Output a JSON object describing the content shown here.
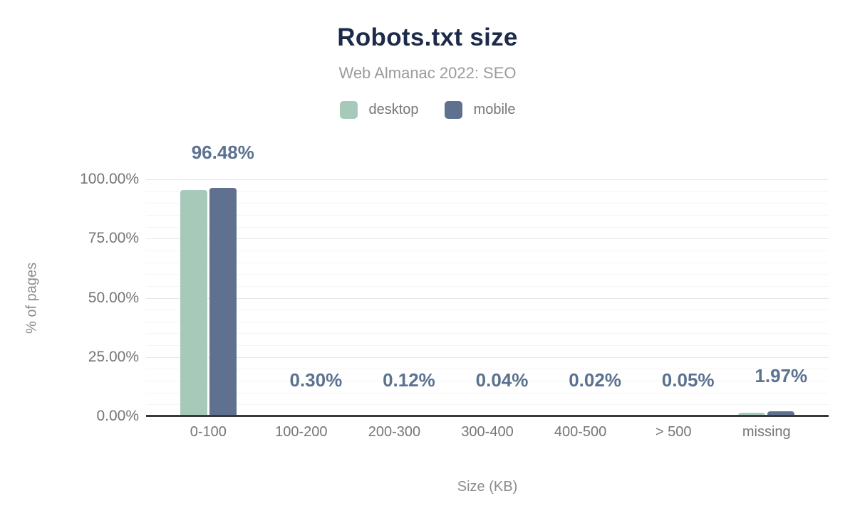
{
  "chart_data": {
    "type": "bar",
    "title": "Robots.txt size",
    "subtitle": "Web Almanac 2022: SEO",
    "xlabel": "Size (KB)",
    "ylabel": "% of pages",
    "categories": [
      "0-100",
      "100-200",
      "200-300",
      "300-400",
      "400-500",
      "> 500",
      "missing"
    ],
    "series": [
      {
        "name": "desktop",
        "color": "#a7c9b9",
        "values": [
          95.5,
          0.3,
          0.12,
          0.04,
          0.02,
          0.05,
          1.5
        ]
      },
      {
        "name": "mobile",
        "color": "#5f718e",
        "values": [
          96.48,
          0.3,
          0.12,
          0.04,
          0.02,
          0.05,
          1.97
        ]
      }
    ],
    "data_labels": [
      "96.48%",
      "0.30%",
      "0.12%",
      "0.04%",
      "0.02%",
      "0.05%",
      "1.97%"
    ],
    "ylim": [
      0,
      100
    ],
    "y_ticks": [
      {
        "value": 0,
        "label": "0.00%"
      },
      {
        "value": 25,
        "label": "25.00%"
      },
      {
        "value": 50,
        "label": "50.00%"
      },
      {
        "value": 75,
        "label": "75.00%"
      },
      {
        "value": 100,
        "label": "100.00%"
      }
    ],
    "y_minor_grid_step": 5,
    "grid": "horizontal",
    "legend_position": "top-center"
  },
  "colors": {
    "background": "#ffffff",
    "title": "#1c2b4a",
    "subtitle": "#9b9b9b",
    "tick_text": "#757575",
    "axis_title_text": "#8c8c8c",
    "data_label": "#5b7290",
    "grid_major": "#e7e7e7",
    "grid_minor": "#f5f5f5",
    "baseline": "#37383c"
  }
}
